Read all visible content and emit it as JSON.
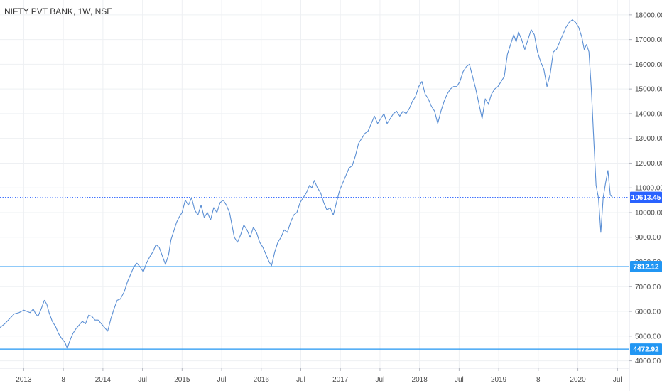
{
  "header": {
    "symbol_title": "NIFTY PVT BANK, 1W, NSE"
  },
  "colors": {
    "price_line": "#5b8fd4",
    "horizontal_line": "#2196f3",
    "current_price_badge": "#2962ff",
    "level_badge": "#2196f3",
    "grid": "#eef0f3",
    "axis_text": "#4a4a4a"
  },
  "chart_data": {
    "type": "line",
    "title": "NIFTY PVT BANK, 1W, NSE",
    "xlabel": "",
    "ylabel": "",
    "ylim": [
      3700,
      18600
    ],
    "xlim": [
      2012.7,
      2020.65
    ],
    "grid": true,
    "y_scale": "linear",
    "y_ticks": [
      "4000.00",
      "5000.00",
      "6000.00",
      "7000.00",
      "8000.00",
      "9000.00",
      "10000.00",
      "11000.00",
      "12000.00",
      "13000.00",
      "14000.00",
      "15000.00",
      "16000.00",
      "17000.00",
      "18000.00"
    ],
    "x_ticks": [
      {
        "label": "2013",
        "t": 2013.0
      },
      {
        "label": "8",
        "t": 2013.5
      },
      {
        "label": "2014",
        "t": 2014.0
      },
      {
        "label": "Jul",
        "t": 2014.5
      },
      {
        "label": "2015",
        "t": 2015.0
      },
      {
        "label": "Jul",
        "t": 2015.5
      },
      {
        "label": "2016",
        "t": 2016.0
      },
      {
        "label": "Jul",
        "t": 2016.5
      },
      {
        "label": "2017",
        "t": 2017.0
      },
      {
        "label": "Jul",
        "t": 2017.5
      },
      {
        "label": "2018",
        "t": 2018.0
      },
      {
        "label": "Jul",
        "t": 2018.5
      },
      {
        "label": "2019",
        "t": 2019.0
      },
      {
        "label": "8",
        "t": 2019.5
      },
      {
        "label": "2020",
        "t": 2020.0
      },
      {
        "label": "Jul",
        "t": 2020.5
      }
    ],
    "horizontal_levels": [
      {
        "value": 7812.12,
        "label": "7812.12"
      },
      {
        "value": 4472.92,
        "label": "4472.92"
      }
    ],
    "current_price": {
      "value": 10613.45,
      "label": "10613.45"
    },
    "series": [
      {
        "points": [
          [
            2012.7,
            5350
          ],
          [
            2012.76,
            5500
          ],
          [
            2012.82,
            5700
          ],
          [
            2012.88,
            5900
          ],
          [
            2012.94,
            5950
          ],
          [
            2013.0,
            6050
          ],
          [
            2013.04,
            6000
          ],
          [
            2013.08,
            5950
          ],
          [
            2013.12,
            6100
          ],
          [
            2013.15,
            5900
          ],
          [
            2013.18,
            5800
          ],
          [
            2013.22,
            6100
          ],
          [
            2013.26,
            6450
          ],
          [
            2013.29,
            6300
          ],
          [
            2013.32,
            5950
          ],
          [
            2013.36,
            5600
          ],
          [
            2013.4,
            5400
          ],
          [
            2013.44,
            5100
          ],
          [
            2013.48,
            4900
          ],
          [
            2013.52,
            4750
          ],
          [
            2013.55,
            4500
          ],
          [
            2013.58,
            4800
          ],
          [
            2013.62,
            5100
          ],
          [
            2013.66,
            5300
          ],
          [
            2013.7,
            5450
          ],
          [
            2013.74,
            5600
          ],
          [
            2013.78,
            5500
          ],
          [
            2013.82,
            5850
          ],
          [
            2013.86,
            5800
          ],
          [
            2013.9,
            5650
          ],
          [
            2013.94,
            5650
          ],
          [
            2013.98,
            5500
          ],
          [
            2014.02,
            5350
          ],
          [
            2014.06,
            5200
          ],
          [
            2014.1,
            5700
          ],
          [
            2014.14,
            6100
          ],
          [
            2014.18,
            6450
          ],
          [
            2014.22,
            6500
          ],
          [
            2014.27,
            6800
          ],
          [
            2014.31,
            7200
          ],
          [
            2014.35,
            7500
          ],
          [
            2014.39,
            7800
          ],
          [
            2014.43,
            7950
          ],
          [
            2014.47,
            7800
          ],
          [
            2014.51,
            7600
          ],
          [
            2014.55,
            7950
          ],
          [
            2014.59,
            8200
          ],
          [
            2014.63,
            8400
          ],
          [
            2014.67,
            8700
          ],
          [
            2014.71,
            8600
          ],
          [
            2014.75,
            8250
          ],
          [
            2014.79,
            7900
          ],
          [
            2014.83,
            8300
          ],
          [
            2014.86,
            8900
          ],
          [
            2014.9,
            9300
          ],
          [
            2014.93,
            9600
          ],
          [
            2014.96,
            9800
          ],
          [
            2015.0,
            10000
          ],
          [
            2015.04,
            10500
          ],
          [
            2015.08,
            10300
          ],
          [
            2015.12,
            10600
          ],
          [
            2015.16,
            10100
          ],
          [
            2015.2,
            9900
          ],
          [
            2015.24,
            10300
          ],
          [
            2015.28,
            9800
          ],
          [
            2015.32,
            10000
          ],
          [
            2015.36,
            9700
          ],
          [
            2015.4,
            10200
          ],
          [
            2015.44,
            10000
          ],
          [
            2015.48,
            10400
          ],
          [
            2015.52,
            10500
          ],
          [
            2015.56,
            10300
          ],
          [
            2015.6,
            10000
          ],
          [
            2015.63,
            9500
          ],
          [
            2015.66,
            9000
          ],
          [
            2015.7,
            8800
          ],
          [
            2015.74,
            9100
          ],
          [
            2015.78,
            9500
          ],
          [
            2015.82,
            9300
          ],
          [
            2015.86,
            9000
          ],
          [
            2015.9,
            9400
          ],
          [
            2015.94,
            9200
          ],
          [
            2015.98,
            8800
          ],
          [
            2016.02,
            8600
          ],
          [
            2016.06,
            8300
          ],
          [
            2016.1,
            8000
          ],
          [
            2016.13,
            7850
          ],
          [
            2016.17,
            8400
          ],
          [
            2016.21,
            8800
          ],
          [
            2016.25,
            9000
          ],
          [
            2016.29,
            9300
          ],
          [
            2016.33,
            9200
          ],
          [
            2016.37,
            9600
          ],
          [
            2016.41,
            9900
          ],
          [
            2016.45,
            10000
          ],
          [
            2016.49,
            10400
          ],
          [
            2016.53,
            10600
          ],
          [
            2016.57,
            10800
          ],
          [
            2016.61,
            11100
          ],
          [
            2016.64,
            11000
          ],
          [
            2016.67,
            11300
          ],
          [
            2016.71,
            11000
          ],
          [
            2016.75,
            10800
          ],
          [
            2016.79,
            10400
          ],
          [
            2016.83,
            10100
          ],
          [
            2016.87,
            10200
          ],
          [
            2016.91,
            9900
          ],
          [
            2016.95,
            10400
          ],
          [
            2016.99,
            10900
          ],
          [
            2017.03,
            11200
          ],
          [
            2017.07,
            11500
          ],
          [
            2017.11,
            11800
          ],
          [
            2017.15,
            11900
          ],
          [
            2017.19,
            12300
          ],
          [
            2017.23,
            12800
          ],
          [
            2017.27,
            13000
          ],
          [
            2017.31,
            13200
          ],
          [
            2017.35,
            13300
          ],
          [
            2017.39,
            13600
          ],
          [
            2017.43,
            13900
          ],
          [
            2017.47,
            13600
          ],
          [
            2017.51,
            13800
          ],
          [
            2017.55,
            14000
          ],
          [
            2017.59,
            13600
          ],
          [
            2017.63,
            13800
          ],
          [
            2017.67,
            14000
          ],
          [
            2017.71,
            14100
          ],
          [
            2017.75,
            13900
          ],
          [
            2017.79,
            14100
          ],
          [
            2017.83,
            14000
          ],
          [
            2017.87,
            14200
          ],
          [
            2017.91,
            14500
          ],
          [
            2017.95,
            14700
          ],
          [
            2017.99,
            15100
          ],
          [
            2018.03,
            15300
          ],
          [
            2018.07,
            14800
          ],
          [
            2018.11,
            14600
          ],
          [
            2018.15,
            14300
          ],
          [
            2018.19,
            14100
          ],
          [
            2018.23,
            13600
          ],
          [
            2018.27,
            14100
          ],
          [
            2018.31,
            14500
          ],
          [
            2018.35,
            14800
          ],
          [
            2018.39,
            15000
          ],
          [
            2018.43,
            15100
          ],
          [
            2018.47,
            15100
          ],
          [
            2018.51,
            15300
          ],
          [
            2018.55,
            15700
          ],
          [
            2018.59,
            15900
          ],
          [
            2018.63,
            16000
          ],
          [
            2018.67,
            15500
          ],
          [
            2018.71,
            15000
          ],
          [
            2018.75,
            14400
          ],
          [
            2018.79,
            13800
          ],
          [
            2018.83,
            14600
          ],
          [
            2018.87,
            14400
          ],
          [
            2018.91,
            14800
          ],
          [
            2018.95,
            15000
          ],
          [
            2018.99,
            15100
          ],
          [
            2019.03,
            15300
          ],
          [
            2019.07,
            15500
          ],
          [
            2019.11,
            16400
          ],
          [
            2019.15,
            16800
          ],
          [
            2019.19,
            17200
          ],
          [
            2019.22,
            16900
          ],
          [
            2019.25,
            17300
          ],
          [
            2019.29,
            17000
          ],
          [
            2019.33,
            16600
          ],
          [
            2019.37,
            17000
          ],
          [
            2019.41,
            17400
          ],
          [
            2019.45,
            17200
          ],
          [
            2019.49,
            16500
          ],
          [
            2019.53,
            16100
          ],
          [
            2019.57,
            15800
          ],
          [
            2019.61,
            15100
          ],
          [
            2019.65,
            15600
          ],
          [
            2019.69,
            16500
          ],
          [
            2019.73,
            16600
          ],
          [
            2019.77,
            16900
          ],
          [
            2019.81,
            17200
          ],
          [
            2019.85,
            17500
          ],
          [
            2019.89,
            17700
          ],
          [
            2019.93,
            17800
          ],
          [
            2019.97,
            17700
          ],
          [
            2020.01,
            17500
          ],
          [
            2020.05,
            17100
          ],
          [
            2020.08,
            16600
          ],
          [
            2020.11,
            16800
          ],
          [
            2020.14,
            16500
          ],
          [
            2020.17,
            15000
          ],
          [
            2020.2,
            13000
          ],
          [
            2020.23,
            11100
          ],
          [
            2020.26,
            10600
          ],
          [
            2020.29,
            9200
          ],
          [
            2020.32,
            10600
          ],
          [
            2020.35,
            11200
          ],
          [
            2020.38,
            11700
          ],
          [
            2020.41,
            10700
          ],
          [
            2020.44,
            10613.45
          ]
        ]
      }
    ]
  }
}
